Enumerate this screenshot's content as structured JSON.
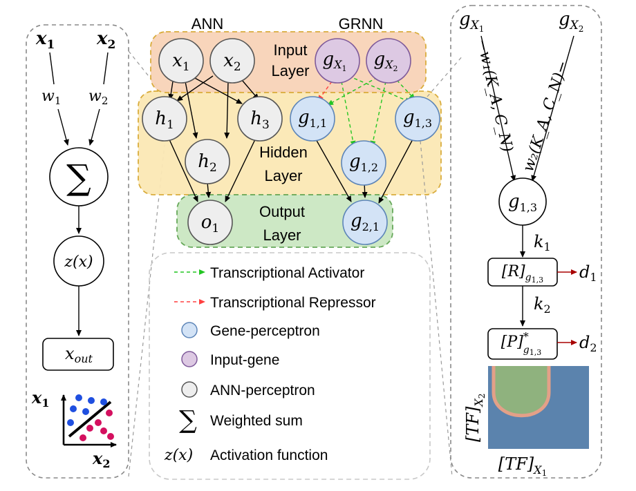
{
  "titles": {
    "ann": "ANN",
    "grnn": "GRNN"
  },
  "layers": {
    "input": [
      "Input",
      "Layer"
    ],
    "hidden": [
      "Hidden",
      "Layer"
    ],
    "output": [
      "Output",
      "Layer"
    ]
  },
  "ann_nodes": {
    "x1": [
      "x",
      "1"
    ],
    "x2": [
      "x",
      "2"
    ],
    "h1": [
      "h",
      "1"
    ],
    "h2": [
      "h",
      "2"
    ],
    "h3": [
      "h",
      "3"
    ],
    "o1": [
      "o",
      "1"
    ]
  },
  "grnn_nodes": {
    "gx1": [
      "g",
      "X",
      "1"
    ],
    "gx2": [
      "g",
      "X",
      "2"
    ],
    "g11": [
      "g",
      "1,1"
    ],
    "g12": [
      "g",
      "1,2"
    ],
    "g13": [
      "g",
      "1,3"
    ],
    "g21": [
      "g",
      "2,1"
    ]
  },
  "perceptron": {
    "x1": [
      "x",
      "1"
    ],
    "x2": [
      "x",
      "2"
    ],
    "w1": [
      "w",
      "1"
    ],
    "w2": [
      "w",
      "2"
    ],
    "sum": "∑",
    "activation": "z(x)",
    "out": [
      "x",
      "out"
    ],
    "axis_y": [
      "x",
      "1"
    ],
    "axis_x": [
      "x",
      "2"
    ]
  },
  "legend": {
    "activator": "Transcriptional Activator",
    "repressor": "Transcriptional Repressor",
    "gene": "Gene-perceptron",
    "input_gene": "Input-gene",
    "ann": "ANN-perceptron",
    "weighted": "Weighted sum",
    "activation": "Activation function",
    "sum_symbol": "∑",
    "z_symbol": "z(x)"
  },
  "gene_detail": {
    "gx1": [
      "g",
      "X",
      "1"
    ],
    "gx2": [
      "g",
      "X",
      "2"
    ],
    "w1_label": "−w₁(K_A, C_N)",
    "w2_label": "w₂(K_A, C_N)−",
    "node": [
      "g",
      "1,3"
    ],
    "k1": [
      "k",
      "1"
    ],
    "k2": [
      "k",
      "2"
    ],
    "r_box": [
      "[R]",
      "g",
      "1,3"
    ],
    "p_box": [
      "[P]",
      "*",
      "g",
      "1,3"
    ],
    "d1": [
      "d",
      "1"
    ],
    "d2": [
      "d",
      "2"
    ],
    "tf_x": [
      "[TF]",
      "X",
      "1"
    ],
    "tf_y": [
      "[TF]",
      "X",
      "2"
    ]
  },
  "colors": {
    "input_layer": "#f8d3b8",
    "hidden_layer": "#fbe8b5",
    "output_layer": "#cde8c5",
    "gene_node": "#d3e3f6",
    "input_gene": "#ddc9e3",
    "ann_node": "#eeeeee",
    "activator": "#22c522",
    "repressor": "#ff4040",
    "decay": "#a80000",
    "heat_bg": "#5b83ad",
    "heat_fg": "#8fb27e",
    "heat_edge": "#e3a088",
    "dot_blue": "#1f4fe0",
    "dot_pink": "#d4105f"
  }
}
